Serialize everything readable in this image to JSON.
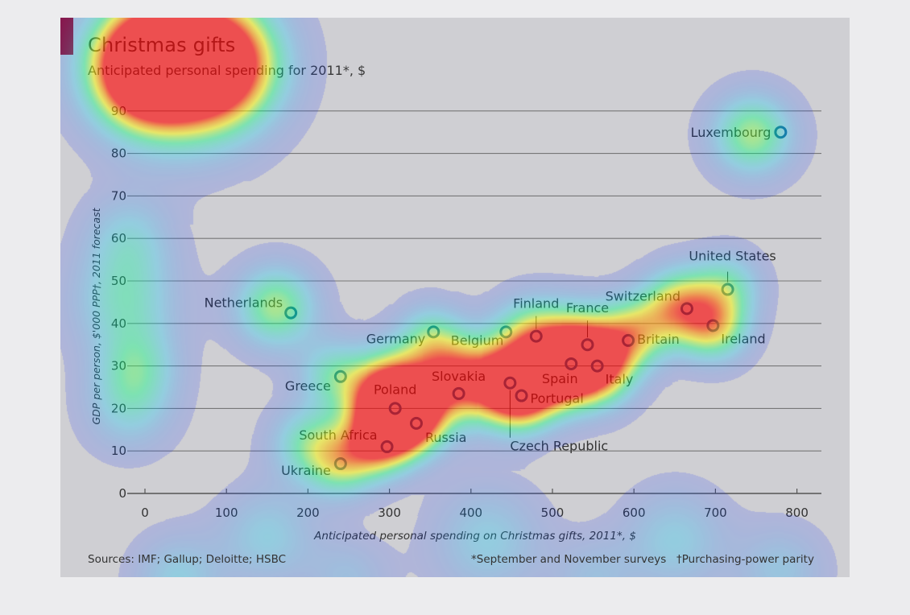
{
  "chart_data": {
    "type": "scatter",
    "title": "Christmas gifts",
    "subtitle": "Anticipated personal spending for 2011*, $",
    "xlabel": "Anticipated personal spending on Christmas gifts, 2011*, $",
    "ylabel": "GDP per person, $'000 PPP†, 2011 forecast",
    "xlim": [
      0,
      830
    ],
    "ylim": [
      0,
      90
    ],
    "x_ticks": [
      "0",
      "100",
      "200",
      "300",
      "400",
      "500",
      "600",
      "700",
      "800"
    ],
    "y_ticks": [
      "0",
      "10",
      "20",
      "30",
      "40",
      "50",
      "60",
      "70",
      "80",
      "90"
    ],
    "grid": "horizontal",
    "marker_color": "#1f5e8c",
    "accent": "#a3122a",
    "points": [
      {
        "label": "Luxembourg",
        "x": 780,
        "y": 85
      },
      {
        "label": "United States",
        "x": 715,
        "y": 48
      },
      {
        "label": "Switzerland",
        "x": 665,
        "y": 43.5
      },
      {
        "label": "Ireland",
        "x": 697,
        "y": 39.5
      },
      {
        "label": "Britain",
        "x": 593,
        "y": 36
      },
      {
        "label": "France",
        "x": 543,
        "y": 35
      },
      {
        "label": "Italy",
        "x": 555,
        "y": 30
      },
      {
        "label": "Spain",
        "x": 523,
        "y": 30.5
      },
      {
        "label": "Finland",
        "x": 480,
        "y": 37
      },
      {
        "label": "Belgium",
        "x": 443,
        "y": 38
      },
      {
        "label": "Germany",
        "x": 354,
        "y": 38
      },
      {
        "label": "Netherlands",
        "x": 179,
        "y": 42.5
      },
      {
        "label": "Greece",
        "x": 240,
        "y": 27.5
      },
      {
        "label": "Slovakia",
        "x": 385,
        "y": 23.5
      },
      {
        "label": "Czech Republic",
        "x": 448,
        "y": 26
      },
      {
        "label": "Portugal",
        "x": 462,
        "y": 23
      },
      {
        "label": "Poland",
        "x": 307,
        "y": 20
      },
      {
        "label": "Russia",
        "x": 333,
        "y": 16.5
      },
      {
        "label": "South Africa",
        "x": 297,
        "y": 11
      },
      {
        "label": "Ukraine",
        "x": 240,
        "y": 7
      }
    ]
  },
  "footer": {
    "sources": "Sources: IMF; Gallup; Deloitte; HSBC",
    "note1": "*September and November surveys",
    "note2": "†Purchasing-power parity"
  },
  "heatmap_spots": [
    {
      "x": 50,
      "y": 101,
      "w": 2.2,
      "i": 1.0
    },
    {
      "x": 5,
      "y": 102,
      "w": 1.6,
      "i": 0.85
    },
    {
      "x": 95,
      "y": 101,
      "w": 1.6,
      "i": 0.8
    },
    {
      "x": -5,
      "y": 98,
      "w": 1.5,
      "i": 0.5
    },
    {
      "x": 448,
      "y": 26,
      "w": 1.2,
      "i": 1.0
    },
    {
      "x": 380,
      "y": 27,
      "w": 1.2,
      "i": 0.85
    },
    {
      "x": 300,
      "y": 24,
      "w": 1.2,
      "i": 0.9
    },
    {
      "x": 308,
      "y": 19,
      "w": 1.1,
      "i": 0.8
    },
    {
      "x": 330,
      "y": 17,
      "w": 1.0,
      "i": 0.55
    },
    {
      "x": 285,
      "y": 12,
      "w": 1.0,
      "i": 0.7
    },
    {
      "x": 240,
      "y": 7,
      "w": 1.0,
      "i": 0.5
    },
    {
      "x": 530,
      "y": 33,
      "w": 1.3,
      "i": 0.9
    },
    {
      "x": 555,
      "y": 30,
      "w": 1.1,
      "i": 0.7
    },
    {
      "x": 505,
      "y": 29,
      "w": 1.0,
      "i": 0.6
    },
    {
      "x": 465,
      "y": 23,
      "w": 1.0,
      "i": 0.5
    },
    {
      "x": 600,
      "y": 38,
      "w": 1.0,
      "i": 0.55
    },
    {
      "x": 655,
      "y": 44,
      "w": 1.1,
      "i": 0.75
    },
    {
      "x": 700,
      "y": 39,
      "w": 1.0,
      "i": 0.6
    },
    {
      "x": 745,
      "y": 84.5,
      "w": 1.2,
      "i": 0.6
    },
    {
      "x": 715,
      "y": 49,
      "w": 1.0,
      "i": 0.4
    },
    {
      "x": 160,
      "y": 44,
      "w": 1.2,
      "i": 0.6
    },
    {
      "x": 230,
      "y": 28,
      "w": 1.0,
      "i": 0.4
    },
    {
      "x": 350,
      "y": 37,
      "w": 1.0,
      "i": 0.4
    },
    {
      "x": 470,
      "y": 38,
      "w": 1.1,
      "i": 0.45
    },
    {
      "x": 200,
      "y": 12,
      "w": 1.1,
      "i": 0.45
    },
    {
      "x": -25,
      "y": 45,
      "w": 1.5,
      "i": 0.4
    },
    {
      "x": -20,
      "y": 60,
      "w": 1.3,
      "i": 0.3
    },
    {
      "x": -20,
      "y": 20,
      "w": 1.3,
      "i": 0.3
    },
    {
      "x": 150,
      "y": -10,
      "w": 1.4,
      "i": 0.3
    },
    {
      "x": 420,
      "y": -11,
      "w": 1.6,
      "i": 0.3
    },
    {
      "x": 650,
      "y": -11,
      "w": 1.5,
      "i": 0.3
    },
    {
      "x": 40,
      "y": -20,
      "w": 1.3,
      "i": 0.3
    },
    {
      "x": 780,
      "y": -18,
      "w": 1.3,
      "i": 0.25
    },
    {
      "x": 250,
      "y": -20,
      "w": 1.2,
      "i": 0.2
    },
    {
      "x": 550,
      "y": -20,
      "w": 1.2,
      "i": 0.2
    },
    {
      "x": -10,
      "y": 30,
      "w": 1.2,
      "i": 0.35
    }
  ]
}
